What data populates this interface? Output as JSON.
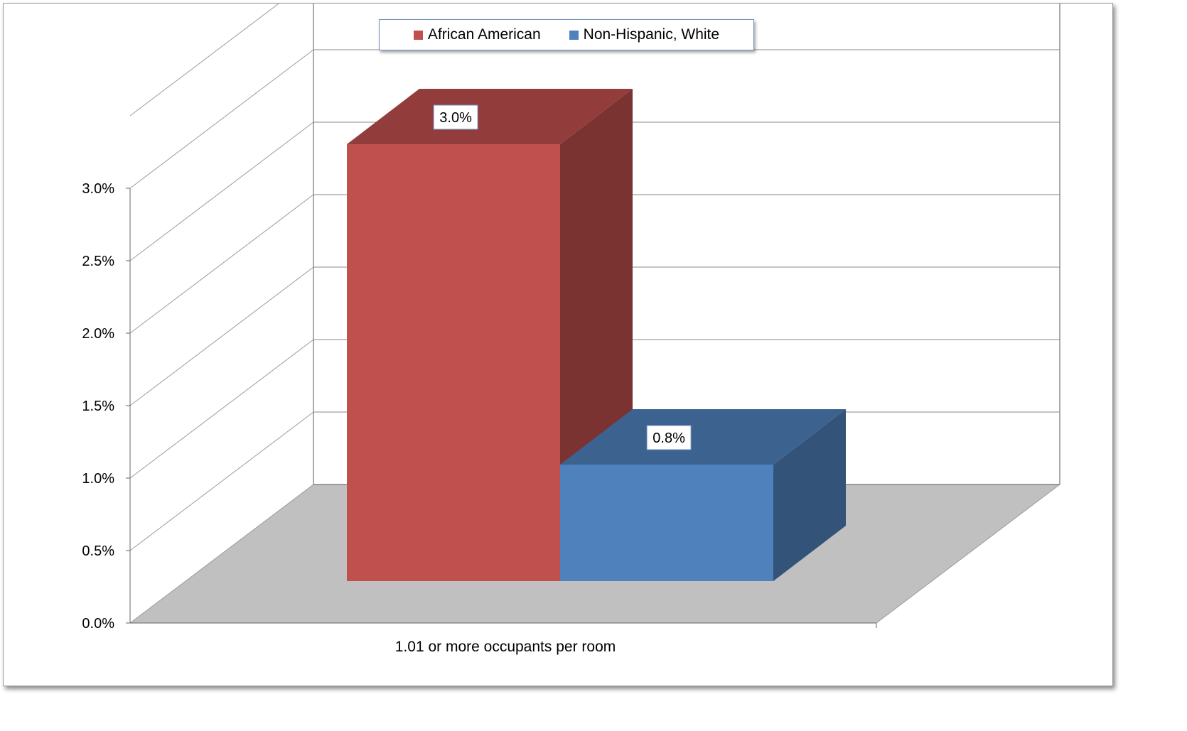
{
  "chart_data": {
    "type": "bar",
    "categories": [
      "1.01 or more occupants per room"
    ],
    "series": [
      {
        "name": "African American",
        "values": [
          3.0
        ],
        "label": "3.0%",
        "color": "#c0504d"
      },
      {
        "name": "Non-Hispanic, White",
        "values": [
          0.8
        ],
        "label": "0.8%",
        "color": "#4f81bd"
      }
    ],
    "title": "",
    "xlabel": "",
    "ylabel": "",
    "ylim": [
      0,
      3.0
    ],
    "yticks": [
      "0.0%",
      "0.5%",
      "1.0%",
      "1.5%",
      "2.0%",
      "2.5%",
      "3.0%"
    ],
    "grid": true,
    "legend_position": "top",
    "style": "3d-column",
    "floor_color": "#c0c0c0"
  }
}
